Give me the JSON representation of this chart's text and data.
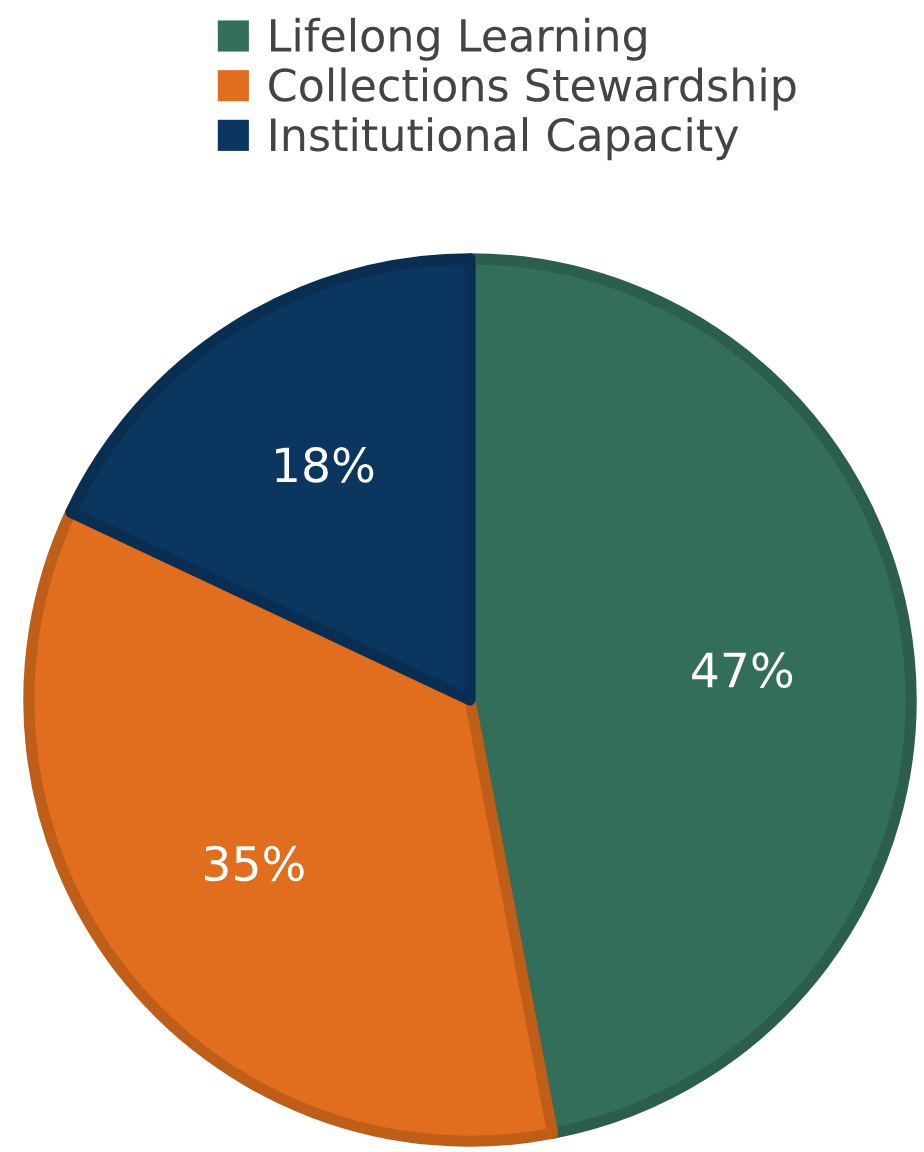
{
  "chart_data": {
    "type": "pie",
    "categories": [
      "Lifelong Learning",
      "Collections Stewardship",
      "Institutional Capacity"
    ],
    "values": [
      47,
      35,
      18
    ],
    "colors": [
      "#336e5a",
      "#e06e1e",
      "#0b3660"
    ],
    "value_labels": [
      "47%",
      "35%",
      "18%"
    ],
    "legend": "top"
  }
}
